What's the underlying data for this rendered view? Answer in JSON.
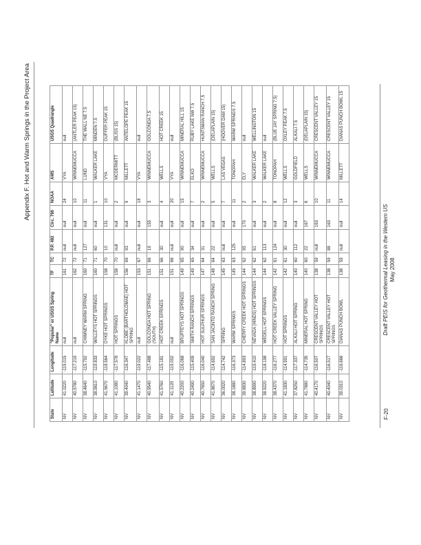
{
  "header": {
    "title": "Appendix F. Hot and Warm Springs in the Project Area"
  },
  "footer": {
    "page": "F-20",
    "document": "Draft PEIS for Geothermal Leasing in the Western US",
    "date": "May 2008"
  },
  "table": {
    "columns": [
      "State",
      "Latitude",
      "Longitude",
      "\"Popular\" or USGS Spring Name",
      "TF",
      "TC",
      "P.P. 492",
      "Circ. 790",
      "NOAA",
      "AMS",
      "USGS Quadrangle"
    ],
    "rows": [
      [
        "NV",
        "41.0220",
        "-119.015",
        "null",
        "161",
        "72",
        "null",
        "null",
        "24",
        "VYA",
        "null"
      ],
      [
        "NV",
        "40.5780",
        "-117.219",
        "null",
        "162",
        "72",
        "null",
        "null",
        "10",
        "WINNEMUCCA",
        "(ANTLER PEAK 15)"
      ],
      [
        "NV",
        "38.4640",
        "-115.792",
        "CHIMNEY WARM SPRING",
        "160",
        "71",
        "127",
        "null",
        "11",
        "LUND",
        "THE WALL NE 7.5"
      ],
      [
        "NV",
        "38.9810",
        "-119.833",
        "WALLEYS HOT SPRINGS",
        "160",
        "71",
        "60",
        "null",
        "1",
        "WALKER LAKE",
        "MINDEN 7.5"
      ],
      [
        "NV",
        "41.5670",
        "-118.564",
        "DYKE HOT SPRINGS",
        "158",
        "70",
        "10",
        "131",
        "10",
        "VYA",
        "DUFFER PEAK 15"
      ],
      [
        "NV",
        "41.1080",
        "-117.578",
        "HOT SPRINGS",
        "158",
        "70",
        "null",
        "null",
        "2",
        "MCDERMITT",
        "(BLISS 15)"
      ],
      [
        "NV",
        "39.4040",
        "-116.347",
        "KLOBE (BARTHOLOMAE) HOT SPRING",
        "156",
        "69",
        "93",
        "null",
        "9",
        "MILLETT",
        "ANTELOPE PEAK 15"
      ],
      [
        "NV",
        "41.1470",
        "-119.022",
        "null",
        "153",
        "67",
        "null",
        "null",
        "18",
        "VYA",
        "null"
      ],
      [
        "NV",
        "40.9540",
        "-117.488",
        "GOLCONDA HOT SPRING (SOUTH)",
        "151",
        "66",
        "19",
        "155",
        "3",
        "WINNEMUCCA",
        "GOLCONDA 7.5"
      ],
      [
        "NV",
        "41.5760",
        "-115.181",
        "HOT CREEK SPRINGS",
        "151",
        "66",
        "30",
        "null",
        "4",
        "WELLS",
        "HOT CREEK 15"
      ],
      [
        "NV",
        "41.1120",
        "-119.002",
        "null",
        "151",
        "66",
        "null",
        "null",
        "20",
        "VYA",
        "null"
      ],
      [
        "NV",
        "40.2200",
        "-116.068",
        "BRUFFEYS HOT SPRINGS",
        "149",
        "65",
        "90",
        "null",
        "15",
        "WINNEMUCCA",
        "MINERAL HILL 15"
      ],
      [
        "NV",
        "40.2490",
        "-115.409",
        "SMITH RANCH SPRINGS",
        "149",
        "65",
        "34",
        "null",
        "7",
        "ELKO",
        "RUBY LAKE NW 7.5"
      ],
      [
        "NV",
        "40.7650",
        "-116.040",
        "HOT SULPHUR SPRINGS",
        "147",
        "64",
        "31",
        "null",
        "2",
        "WINNEMUCCA",
        "HUNTSMAN RANCH 7.5"
      ],
      [
        "NV",
        "41.8670",
        "-114.692",
        "SAN JACINTO RANCH SPRING",
        "148",
        "64",
        "22",
        "null",
        "5",
        "WELLS",
        "(DELAPLAIN 15)"
      ],
      [
        "NV",
        "36.0020",
        "-114.742",
        "SPRING",
        "145",
        "63",
        "null",
        "null",
        "7",
        "LAS VEGAS",
        "(HOOVER DAM 15)"
      ],
      [
        "NV",
        "38.1880",
        "-116.373",
        "WARM SPRINGS",
        "145",
        "63",
        "125",
        "null",
        "11",
        "TONOPAH",
        "WARM SPRINGS 7.5"
      ],
      [
        "NV",
        "39.8830",
        "-114.893",
        "CHERRY CREEK HOT SPRINGS",
        "144",
        "62",
        "95",
        "170",
        "2",
        "ELY",
        "null"
      ],
      [
        "NV",
        "38.8990",
        "-119.410",
        "NEVADA (HINDS) HOT SPRINGS",
        "144",
        "62",
        "61",
        "null",
        "3",
        "WALKER LAKE",
        "WELLINGTON 15"
      ],
      [
        "NV",
        "38.9220",
        "-118.198",
        "WEDELL HOT SPRINGS",
        "144",
        "62",
        "113",
        "null",
        "2",
        "WALKER LAKE",
        "null"
      ],
      [
        "NV",
        "38.4370",
        "-116.277",
        "HOT CREEK VALLEY SPRING",
        "142",
        "61",
        "124",
        "null",
        "8",
        "TONOPAH",
        "(BLUE JAY SPRING 7.5)"
      ],
      [
        "NV",
        "41.1830",
        "-114.991",
        "HOT SPRINGS",
        "142",
        "61",
        "30",
        "null",
        "12",
        "WELLS",
        "OXLEY PEAK 7.5"
      ],
      [
        "NV",
        "37.8250",
        "-117.337",
        "ALKALI HOT SPRING",
        "140",
        "60",
        "112",
        "null",
        "3",
        "GOLDFIELD",
        "ALKALI 7.5"
      ],
      [
        "NV",
        "41.7880",
        "-114.735",
        "MINERAL HOT SPRING",
        "140",
        "60",
        "22",
        "167",
        "6",
        "WELLS",
        "(DELAPLAIN 15)"
      ],
      [
        "NV",
        "40.4170",
        "-116.507",
        "CRESCENT VALLEY HOT SPRINGS",
        "138",
        "59",
        "null",
        "163",
        "10",
        "WINNEMUCCA",
        "CRESCENT VALLEY 15"
      ],
      [
        "NV",
        "40.4040",
        "-116.517",
        "CRESCENT VALLEY HOT SPRINGS",
        "138",
        "59",
        "88",
        "163",
        "11",
        "WINNEMUCCA",
        "CRESCENT VALLEY 15"
      ],
      [
        "NV",
        "39.0310",
        "-116.666",
        "DIANAS PUNCH BOWL",
        "138",
        "59",
        "null",
        "null",
        "14",
        "MILLETT",
        "DIANAS PUNCH BOWL 15"
      ]
    ]
  }
}
